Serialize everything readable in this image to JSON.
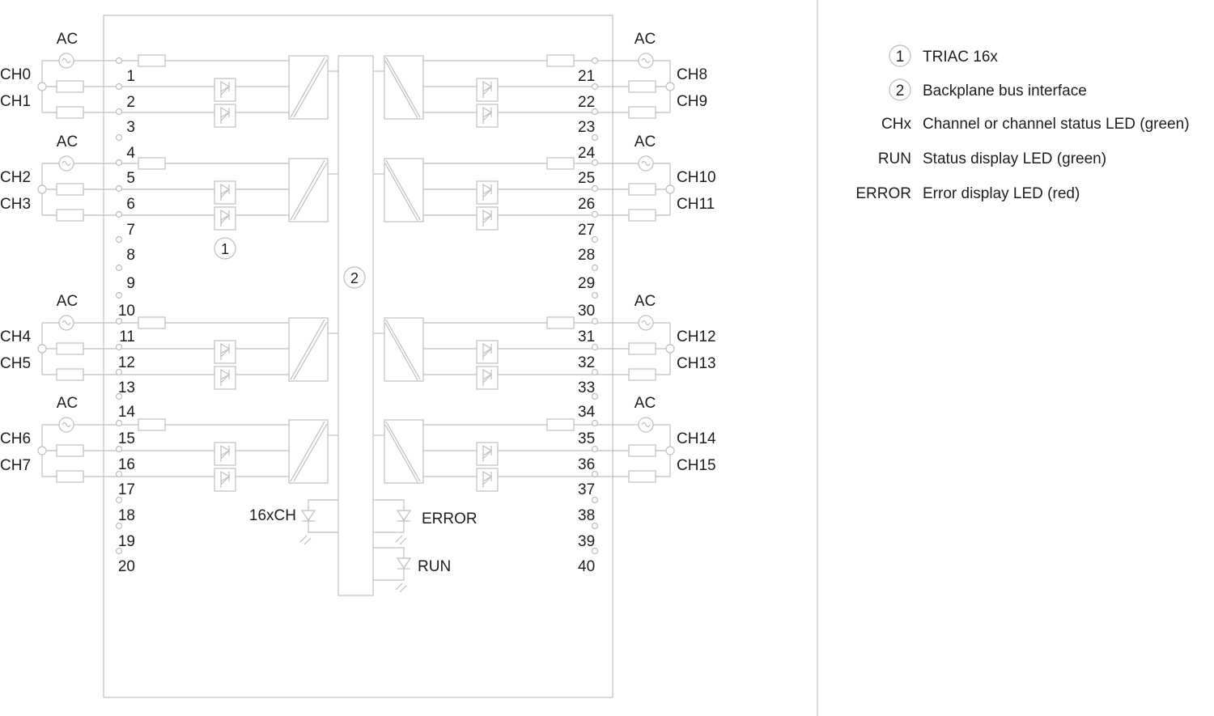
{
  "module": {
    "terminals_left": [
      "1",
      "2",
      "3",
      "4",
      "5",
      "6",
      "7",
      "8",
      "9",
      "10",
      "11",
      "12",
      "13",
      "14",
      "15",
      "16",
      "17",
      "18",
      "19",
      "20"
    ],
    "terminals_right": [
      "21",
      "22",
      "23",
      "24",
      "25",
      "26",
      "27",
      "28",
      "29",
      "30",
      "31",
      "32",
      "33",
      "34",
      "35",
      "36",
      "37",
      "38",
      "39",
      "40"
    ]
  },
  "left_groups": [
    {
      "source": "AC",
      "channels": [
        "CH0",
        "CH1"
      ]
    },
    {
      "source": "AC",
      "channels": [
        "CH2",
        "CH3"
      ]
    },
    {
      "source": "AC",
      "channels": [
        "CH4",
        "CH5"
      ]
    },
    {
      "source": "AC",
      "channels": [
        "CH6",
        "CH7"
      ]
    }
  ],
  "right_groups": [
    {
      "source": "AC",
      "channels": [
        "CH8",
        "CH9"
      ]
    },
    {
      "source": "AC",
      "channels": [
        "CH10",
        "CH11"
      ]
    },
    {
      "source": "AC",
      "channels": [
        "CH12",
        "CH13"
      ]
    },
    {
      "source": "AC",
      "channels": [
        "CH14",
        "CH15"
      ]
    }
  ],
  "callouts": {
    "triac": "1",
    "bus": "2"
  },
  "leds": {
    "channel": "16xCH",
    "error": "ERROR",
    "run": "RUN"
  },
  "legend": [
    {
      "key": "1",
      "circled": true,
      "text": "TRIAC 16x"
    },
    {
      "key": "2",
      "circled": true,
      "text": "Backplane bus interface"
    },
    {
      "key": "CHx",
      "circled": false,
      "text": "Channel or channel status LED (green)"
    },
    {
      "key": "RUN",
      "circled": false,
      "text": "Status display LED (green)"
    },
    {
      "key": "ERROR",
      "circled": false,
      "text": "Error display LED (red)"
    }
  ],
  "colors": {
    "line": "#bdbdbd",
    "text": "#1e1e1e"
  }
}
